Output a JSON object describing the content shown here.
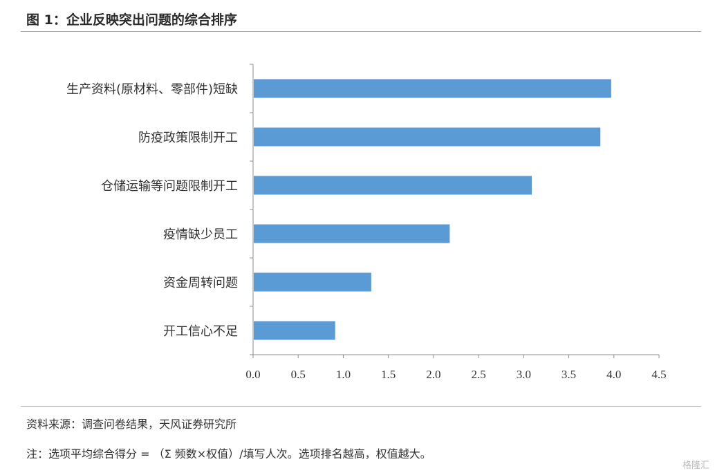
{
  "title": "图 1：企业反映突出问题的综合排序",
  "source": "资料来源：调查问卷结果，天风证券研究所",
  "note": "注：选项平均综合得分 = （Σ 频数×权值）/填写人次。选项排名越高，权值越大。",
  "watermark": "格隆汇",
  "colors": {
    "bar": "#5b9bd5",
    "rule": "#d9a03f",
    "axis": "#8c8c8c"
  },
  "chart_data": {
    "type": "bar",
    "orientation": "horizontal",
    "categories": [
      "生产资料(原材料、零部件)短缺",
      "防疫政策限制开工",
      "仓储运输等问题限制开工",
      "疫情缺少员工",
      "资金周转问题",
      "开工信心不足"
    ],
    "values": [
      3.97,
      3.85,
      3.09,
      2.18,
      1.31,
      0.91
    ],
    "xlim": [
      0,
      4.5
    ],
    "xticks": [
      "0.0",
      "0.5",
      "1.0",
      "1.5",
      "2.0",
      "2.5",
      "3.0",
      "3.5",
      "4.0",
      "4.5"
    ],
    "grid": false,
    "legend": "none"
  }
}
